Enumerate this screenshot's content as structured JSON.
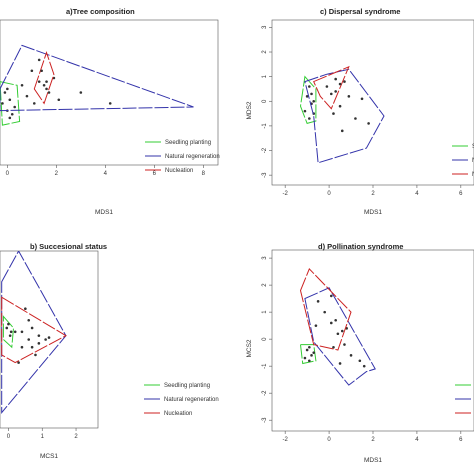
{
  "chart_data": [
    {
      "id": "a",
      "type": "scatter",
      "title": "a)Tree composition",
      "xlabel": "MDS1",
      "ylabel": "",
      "x_ticks": [
        "0",
        "2",
        "4",
        "6",
        "8"
      ],
      "y_ticks": [],
      "xlim": [
        -0.3,
        8.6
      ],
      "ylim": [
        -2.0,
        2.0
      ],
      "legend": {
        "placement": "bottom-right",
        "entries": [
          {
            "label": "Seedling planting",
            "color": "#33cc33"
          },
          {
            "label": "Natural regeneration",
            "color": "#3333aa"
          },
          {
            "label": "Nucleation",
            "color": "#cc2222"
          }
        ]
      },
      "series": [
        {
          "label_ref": 0,
          "color": "#33cc33",
          "hull": [
            [
              -0.3,
              0.3
            ],
            [
              0.4,
              0.2
            ],
            [
              0.5,
              -0.8
            ],
            [
              -0.2,
              -0.9
            ]
          ],
          "points": [
            [
              -0.2,
              -0.3
            ],
            [
              0.0,
              -0.5
            ],
            [
              0.1,
              -0.2
            ],
            [
              0.2,
              -0.6
            ],
            [
              -0.1,
              0.0
            ],
            [
              0.3,
              -0.4
            ],
            [
              0.1,
              -0.7
            ],
            [
              0.0,
              0.1
            ]
          ]
        },
        {
          "label_ref": 1,
          "color": "#3333aa",
          "hull": [
            [
              -0.3,
              0.1
            ],
            [
              0.6,
              1.3
            ],
            [
              7.6,
              -0.4
            ],
            [
              -0.3,
              -0.5
            ]
          ],
          "points": [
            [
              1.0,
              0.6
            ],
            [
              1.3,
              0.3
            ],
            [
              0.8,
              -0.1
            ],
            [
              1.6,
              0.1
            ],
            [
              2.1,
              -0.2
            ],
            [
              4.2,
              -0.3
            ],
            [
              3.0,
              0.0
            ],
            [
              1.9,
              0.4
            ],
            [
              0.6,
              0.2
            ],
            [
              1.1,
              -0.3
            ]
          ]
        },
        {
          "label_ref": 2,
          "color": "#cc2222",
          "hull": [
            [
              1.1,
              0.1
            ],
            [
              1.6,
              1.1
            ],
            [
              1.9,
              0.5
            ],
            [
              1.5,
              -0.3
            ]
          ],
          "points": [
            [
              1.4,
              0.6
            ],
            [
              1.6,
              0.3
            ],
            [
              1.3,
              0.9
            ],
            [
              1.7,
              0.0
            ],
            [
              1.5,
              0.2
            ]
          ]
        }
      ]
    },
    {
      "id": "c",
      "type": "scatter",
      "title": "c) Dispersal syndrome",
      "xlabel": "MDS1",
      "ylabel": "MDS2",
      "x_ticks": [
        "-2",
        "0",
        "2",
        "4",
        "6"
      ],
      "y_ticks": [
        "3",
        "2",
        "1",
        "0",
        "-1",
        "-2",
        "-3"
      ],
      "xlim": [
        -2.6,
        6.6
      ],
      "ylim": [
        -3.4,
        3.3
      ],
      "legend": {
        "placement": "bottom-right",
        "entries": [
          {
            "label": "Sl",
            "color": "#33cc33"
          },
          {
            "label": "Nl",
            "color": "#3333aa"
          },
          {
            "label": "Nl",
            "color": "#cc2222"
          }
        ]
      },
      "series": [
        {
          "label_ref": 0,
          "color": "#33cc33",
          "hull": [
            [
              -1.1,
              1.0
            ],
            [
              -0.6,
              0.5
            ],
            [
              -0.6,
              -0.8
            ],
            [
              -1.0,
              -0.9
            ],
            [
              -1.3,
              -0.2
            ]
          ],
          "points": [
            [
              -1.0,
              0.2
            ],
            [
              -0.8,
              -0.1
            ],
            [
              -0.9,
              0.6
            ],
            [
              -0.7,
              -0.5
            ],
            [
              -1.1,
              -0.4
            ],
            [
              -0.8,
              0.3
            ],
            [
              -0.7,
              0.0
            ],
            [
              -0.9,
              -0.7
            ]
          ]
        },
        {
          "label_ref": 1,
          "color": "#3333aa",
          "hull": [
            [
              -1.1,
              0.8
            ],
            [
              -0.1,
              1.1
            ],
            [
              0.9,
              1.3
            ],
            [
              2.5,
              -0.6
            ],
            [
              1.7,
              -1.9
            ],
            [
              -0.5,
              -2.5
            ],
            [
              -0.7,
              -0.6
            ]
          ],
          "points": [
            [
              0.3,
              0.4
            ],
            [
              0.5,
              -0.2
            ],
            [
              0.9,
              0.2
            ],
            [
              1.2,
              -0.7
            ],
            [
              0.6,
              -1.2
            ],
            [
              1.8,
              -0.9
            ],
            [
              0.2,
              -0.5
            ],
            [
              1.5,
              0.1
            ],
            [
              0.7,
              0.8
            ]
          ]
        },
        {
          "label_ref": 2,
          "color": "#cc2222",
          "hull": [
            [
              -0.7,
              0.8
            ],
            [
              0.9,
              1.4
            ],
            [
              0.1,
              -0.3
            ],
            [
              -0.4,
              0.2
            ]
          ],
          "points": [
            [
              -0.1,
              0.6
            ],
            [
              0.3,
              0.9
            ],
            [
              0.1,
              0.3
            ],
            [
              0.5,
              0.7
            ]
          ]
        }
      ]
    },
    {
      "id": "b",
      "type": "scatter",
      "title": "b) Succesional status",
      "xlabel": "MCS1",
      "ylabel": "",
      "x_ticks": [
        "0",
        "1",
        "2"
      ],
      "y_ticks": [],
      "xlim": [
        -0.25,
        2.65
      ],
      "ylim": [
        -2.3,
        2.3
      ],
      "legend": {
        "placement": "bottom-right",
        "entries": [
          {
            "label": "Seedling planting",
            "color": "#33cc33"
          },
          {
            "label": "Natural regeneration",
            "color": "#3333aa"
          },
          {
            "label": "Nucleation",
            "color": "#cc2222"
          }
        ]
      },
      "series": [
        {
          "label_ref": 0,
          "color": "#33cc33",
          "hull": [
            [
              -0.15,
              0.6
            ],
            [
              0.15,
              0.3
            ],
            [
              0.1,
              -0.2
            ],
            [
              -0.15,
              0.0
            ]
          ],
          "points": [
            [
              -0.05,
              0.3
            ],
            [
              0.05,
              0.1
            ],
            [
              0.0,
              0.4
            ],
            [
              0.08,
              0.2
            ]
          ]
        },
        {
          "label_ref": 1,
          "color": "#3333aa",
          "hull": [
            [
              -0.2,
              1.5
            ],
            [
              0.3,
              2.3
            ],
            [
              1.7,
              0.1
            ],
            [
              -0.2,
              -1.9
            ]
          ],
          "points": [
            [
              0.5,
              0.8
            ],
            [
              0.7,
              0.3
            ],
            [
              0.9,
              0.1
            ],
            [
              0.4,
              -0.2
            ],
            [
              1.1,
              0.0
            ],
            [
              0.6,
              0.5
            ],
            [
              0.2,
              0.2
            ],
            [
              0.8,
              -0.4
            ],
            [
              0.3,
              -0.6
            ]
          ]
        },
        {
          "label_ref": 2,
          "color": "#cc2222",
          "hull": [
            [
              -0.2,
              1.1
            ],
            [
              1.7,
              0.1
            ],
            [
              0.2,
              -0.6
            ],
            [
              -0.2,
              -0.4
            ]
          ],
          "points": [
            [
              0.6,
              0.0
            ],
            [
              0.9,
              -0.1
            ],
            [
              0.4,
              0.2
            ],
            [
              1.2,
              0.05
            ],
            [
              0.7,
              -0.2
            ]
          ]
        }
      ]
    },
    {
      "id": "d",
      "type": "scatter",
      "title": "d) Pollination syndrome",
      "xlabel": "MDS1",
      "ylabel": "MCS2",
      "x_ticks": [
        "-2",
        "0",
        "2",
        "4",
        "6"
      ],
      "y_ticks": [
        "3",
        "2",
        "1",
        "0",
        "-1",
        "-2",
        "-3"
      ],
      "xlim": [
        -2.6,
        6.6
      ],
      "ylim": [
        -3.4,
        3.3
      ],
      "legend": {
        "placement": "bottom-right",
        "entries": [
          {
            "label": "",
            "color": "#33cc33"
          },
          {
            "label": "",
            "color": "#3333aa"
          },
          {
            "label": "",
            "color": "#cc2222"
          }
        ]
      },
      "series": [
        {
          "label_ref": 0,
          "color": "#33cc33",
          "hull": [
            [
              -1.3,
              -0.2
            ],
            [
              -0.7,
              -0.2
            ],
            [
              -0.6,
              -0.8
            ],
            [
              -1.2,
              -0.9
            ]
          ],
          "points": [
            [
              -1.0,
              -0.4
            ],
            [
              -0.8,
              -0.6
            ],
            [
              -0.9,
              -0.3
            ],
            [
              -1.1,
              -0.7
            ],
            [
              -0.7,
              -0.5
            ],
            [
              -0.9,
              -0.8
            ]
          ]
        },
        {
          "label_ref": 1,
          "color": "#3333aa",
          "hull": [
            [
              -1.1,
              1.5
            ],
            [
              0.0,
              1.9
            ],
            [
              2.1,
              -1.1
            ],
            [
              1.7,
              -1.2
            ],
            [
              0.9,
              -1.7
            ],
            [
              -0.7,
              -0.1
            ]
          ],
          "points": [
            [
              0.1,
              0.6
            ],
            [
              0.4,
              0.2
            ],
            [
              0.7,
              -0.2
            ],
            [
              1.0,
              -0.6
            ],
            [
              0.5,
              -0.9
            ],
            [
              1.4,
              -0.8
            ],
            [
              0.2,
              -0.3
            ],
            [
              1.6,
              -1.0
            ],
            [
              0.8,
              0.4
            ]
          ]
        },
        {
          "label_ref": 2,
          "color": "#cc2222",
          "hull": [
            [
              -1.3,
              1.8
            ],
            [
              -0.9,
              2.6
            ],
            [
              1.0,
              1.0
            ],
            [
              0.4,
              -0.4
            ],
            [
              -0.7,
              -0.2
            ]
          ],
          "points": [
            [
              -0.5,
              1.4
            ],
            [
              -0.2,
              1.0
            ],
            [
              0.1,
              1.6
            ],
            [
              0.3,
              0.7
            ],
            [
              -0.6,
              0.5
            ],
            [
              0.6,
              0.3
            ]
          ]
        }
      ]
    }
  ]
}
